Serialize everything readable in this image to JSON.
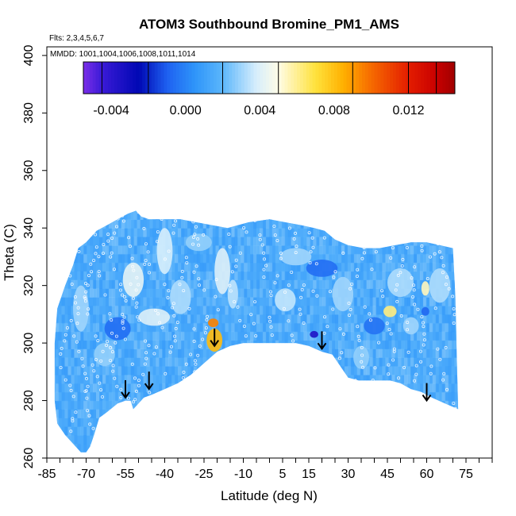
{
  "chart_data": {
    "type": "heatmap",
    "title": "ATOM3 Southbound Bromine_PM1_AMS",
    "flights_label": "Flts: 2,3,4,5,6,7",
    "dates_label": "MMDD: 1001,1004,1006,1008,1011,1014",
    "xlabel": "Latitude (deg N)",
    "ylabel": "Theta (C)",
    "xlim": [
      -85,
      85
    ],
    "ylim": [
      260,
      403
    ],
    "x_tick_labels": [
      "-85",
      "-70",
      "-55",
      "-40",
      "-25",
      "-10",
      "5",
      "15",
      "30",
      "45",
      "60",
      "75"
    ],
    "x_tick_values": [
      -85,
      -70,
      -55,
      -40,
      -25,
      -10,
      5,
      15,
      30,
      45,
      60,
      75
    ],
    "x_minor_ticks": [
      -85,
      -80,
      -75,
      -70,
      -65,
      -60,
      -55,
      -50,
      -45,
      -40,
      -35,
      -30,
      -25,
      -20,
      -15,
      -10,
      -5,
      0,
      5,
      10,
      15,
      20,
      25,
      30,
      35,
      40,
      45,
      50,
      55,
      60,
      65,
      70,
      75,
      80,
      85
    ],
    "y_ticks": [
      260,
      280,
      300,
      320,
      340,
      360,
      380,
      400
    ],
    "colorbar": {
      "range": [
        -0.0055,
        0.0145
      ],
      "tick_values": [
        -0.004,
        0.0,
        0.004,
        0.008,
        0.012
      ],
      "tick_labels": [
        "-0.004",
        "0.000",
        "0.004",
        "0.008",
        "0.012"
      ],
      "separators": [
        -0.0045,
        -0.002,
        0.002,
        0.005,
        0.009,
        0.012,
        0.0135
      ],
      "stops": [
        {
          "v": -0.0055,
          "c": "#7B2FE8"
        },
        {
          "v": -0.0045,
          "c": "#3A1AD6"
        },
        {
          "v": -0.0025,
          "c": "#0008B4"
        },
        {
          "v": -0.001,
          "c": "#1E60F0"
        },
        {
          "v": 0.0005,
          "c": "#2E95FA"
        },
        {
          "v": 0.002,
          "c": "#5CB6FB"
        },
        {
          "v": 0.0038,
          "c": "#D6EEFC"
        },
        {
          "v": 0.005,
          "c": "#FFFCE6"
        },
        {
          "v": 0.007,
          "c": "#FFE23C"
        },
        {
          "v": 0.0085,
          "c": "#FFB000"
        },
        {
          "v": 0.01,
          "c": "#F66A00"
        },
        {
          "v": 0.012,
          "c": "#E41D00"
        },
        {
          "v": 0.0135,
          "c": "#C80000"
        },
        {
          "v": 0.0145,
          "c": "#A00000"
        }
      ]
    },
    "background_value": 0.0013,
    "curtain_outline": [
      [
        -73,
        333
      ],
      [
        -70,
        335
      ],
      [
        -66,
        339
      ],
      [
        -62,
        341
      ],
      [
        -58,
        343
      ],
      [
        -54,
        345
      ],
      [
        -51,
        346
      ],
      [
        -49,
        344
      ],
      [
        -46,
        343
      ],
      [
        -40,
        343
      ],
      [
        -34,
        343
      ],
      [
        -28,
        342
      ],
      [
        -22,
        341
      ],
      [
        -16,
        340
      ],
      [
        -8,
        342
      ],
      [
        0,
        343
      ],
      [
        6,
        342
      ],
      [
        12,
        341
      ],
      [
        17,
        340
      ],
      [
        21,
        339
      ],
      [
        25,
        336
      ],
      [
        30,
        334
      ],
      [
        36,
        333
      ],
      [
        42,
        333
      ],
      [
        48,
        334
      ],
      [
        54,
        335
      ],
      [
        60,
        335
      ],
      [
        65,
        334
      ],
      [
        70,
        333
      ],
      [
        71,
        315
      ],
      [
        71.5,
        295
      ],
      [
        72,
        277
      ],
      [
        67,
        279
      ],
      [
        62,
        281
      ],
      [
        58,
        283
      ],
      [
        54,
        284
      ],
      [
        50,
        286
      ],
      [
        46,
        287
      ],
      [
        40,
        287
      ],
      [
        34,
        287
      ],
      [
        30,
        288
      ],
      [
        27,
        292
      ],
      [
        24,
        296
      ],
      [
        20,
        297
      ],
      [
        15,
        299
      ],
      [
        10,
        300
      ],
      [
        5,
        300
      ],
      [
        0,
        300
      ],
      [
        -5,
        300
      ],
      [
        -10,
        300
      ],
      [
        -15,
        299
      ],
      [
        -20,
        297
      ],
      [
        -25,
        293
      ],
      [
        -30,
        289
      ],
      [
        -35,
        286
      ],
      [
        -40,
        284
      ],
      [
        -45,
        282
      ],
      [
        -48,
        281
      ],
      [
        -50,
        279
      ],
      [
        -52,
        277
      ],
      [
        -53,
        280
      ],
      [
        -55,
        280
      ],
      [
        -58,
        279
      ],
      [
        -62,
        276
      ],
      [
        -65,
        274
      ],
      [
        -67,
        268
      ],
      [
        -68.5,
        264
      ],
      [
        -70,
        262
      ],
      [
        -72,
        262
      ],
      [
        -75,
        265
      ],
      [
        -78,
        268
      ],
      [
        -81,
        272
      ],
      [
        -82,
        280
      ],
      [
        -82,
        300
      ],
      [
        -81,
        312
      ],
      [
        -78,
        320
      ],
      [
        -75,
        327
      ]
    ],
    "anomalies": [
      {
        "lat": -21,
        "theta": 301,
        "value": 0.0082,
        "rx": 3,
        "ry": 4
      },
      {
        "lat": -21.5,
        "theta": 307,
        "value": 0.0095,
        "rx": 2,
        "ry": 1.5
      },
      {
        "lat": 17,
        "theta": 303,
        "value": -0.0035,
        "rx": 1.6,
        "ry": 1.2
      },
      {
        "lat": 46,
        "theta": 311,
        "value": 0.0062,
        "rx": 2.5,
        "ry": 2
      },
      {
        "lat": 59.5,
        "theta": 319,
        "value": 0.0055,
        "rx": 1.5,
        "ry": 2.5
      },
      {
        "lat": 59.5,
        "theta": 311,
        "value": -0.0008,
        "rx": 1.5,
        "ry": 1.5
      },
      {
        "lat": -52,
        "theta": 322,
        "value": 0.0042,
        "rx": 4,
        "ry": 6
      },
      {
        "lat": -44,
        "theta": 309,
        "value": 0.004,
        "rx": 6,
        "ry": 3
      },
      {
        "lat": -40,
        "theta": 332,
        "value": 0.0038,
        "rx": 3,
        "ry": 8
      },
      {
        "lat": -34,
        "theta": 316,
        "value": 0.0032,
        "rx": 4,
        "ry": 6
      },
      {
        "lat": -18,
        "theta": 325,
        "value": 0.004,
        "rx": 3,
        "ry": 8
      },
      {
        "lat": -14,
        "theta": 317,
        "value": 0.0034,
        "rx": 2,
        "ry": 5
      },
      {
        "lat": 6,
        "theta": 315,
        "value": 0.0035,
        "rx": 4,
        "ry": 4
      },
      {
        "lat": 28,
        "theta": 317,
        "value": 0.003,
        "rx": 4,
        "ry": 6
      },
      {
        "lat": 50,
        "theta": 321,
        "value": 0.0032,
        "rx": 5,
        "ry": 5
      },
      {
        "lat": 35,
        "theta": 295,
        "value": 0.0028,
        "rx": 3,
        "ry": 4
      },
      {
        "lat": 54,
        "theta": 306,
        "value": 0.003,
        "rx": 3,
        "ry": 3
      },
      {
        "lat": 65,
        "theta": 320,
        "value": 0.0032,
        "rx": 4,
        "ry": 6
      },
      {
        "lat": -72,
        "theta": 312,
        "value": 0.003,
        "rx": 3,
        "ry": 8
      },
      {
        "lat": -63,
        "theta": 296,
        "value": 0.0028,
        "rx": 4,
        "ry": 4
      },
      {
        "lat": 10,
        "theta": 330,
        "value": 0.003,
        "rx": 6,
        "ry": 3
      },
      {
        "lat": -27,
        "theta": 335,
        "value": 0.0028,
        "rx": 5,
        "ry": 3
      },
      {
        "lat": 20,
        "theta": 326,
        "value": -0.0006,
        "rx": 6,
        "ry": 3
      },
      {
        "lat": -58,
        "theta": 305,
        "value": -0.0006,
        "rx": 5,
        "ry": 4
      },
      {
        "lat": 40,
        "theta": 306,
        "value": -0.0005,
        "rx": 4,
        "ry": 3
      }
    ],
    "arrows": [
      {
        "lat": -55,
        "theta": 281
      },
      {
        "lat": -46,
        "theta": 284
      },
      {
        "lat": -21,
        "theta": 299
      },
      {
        "lat": 20,
        "theta": 298
      },
      {
        "lat": 60,
        "theta": 280
      }
    ]
  }
}
